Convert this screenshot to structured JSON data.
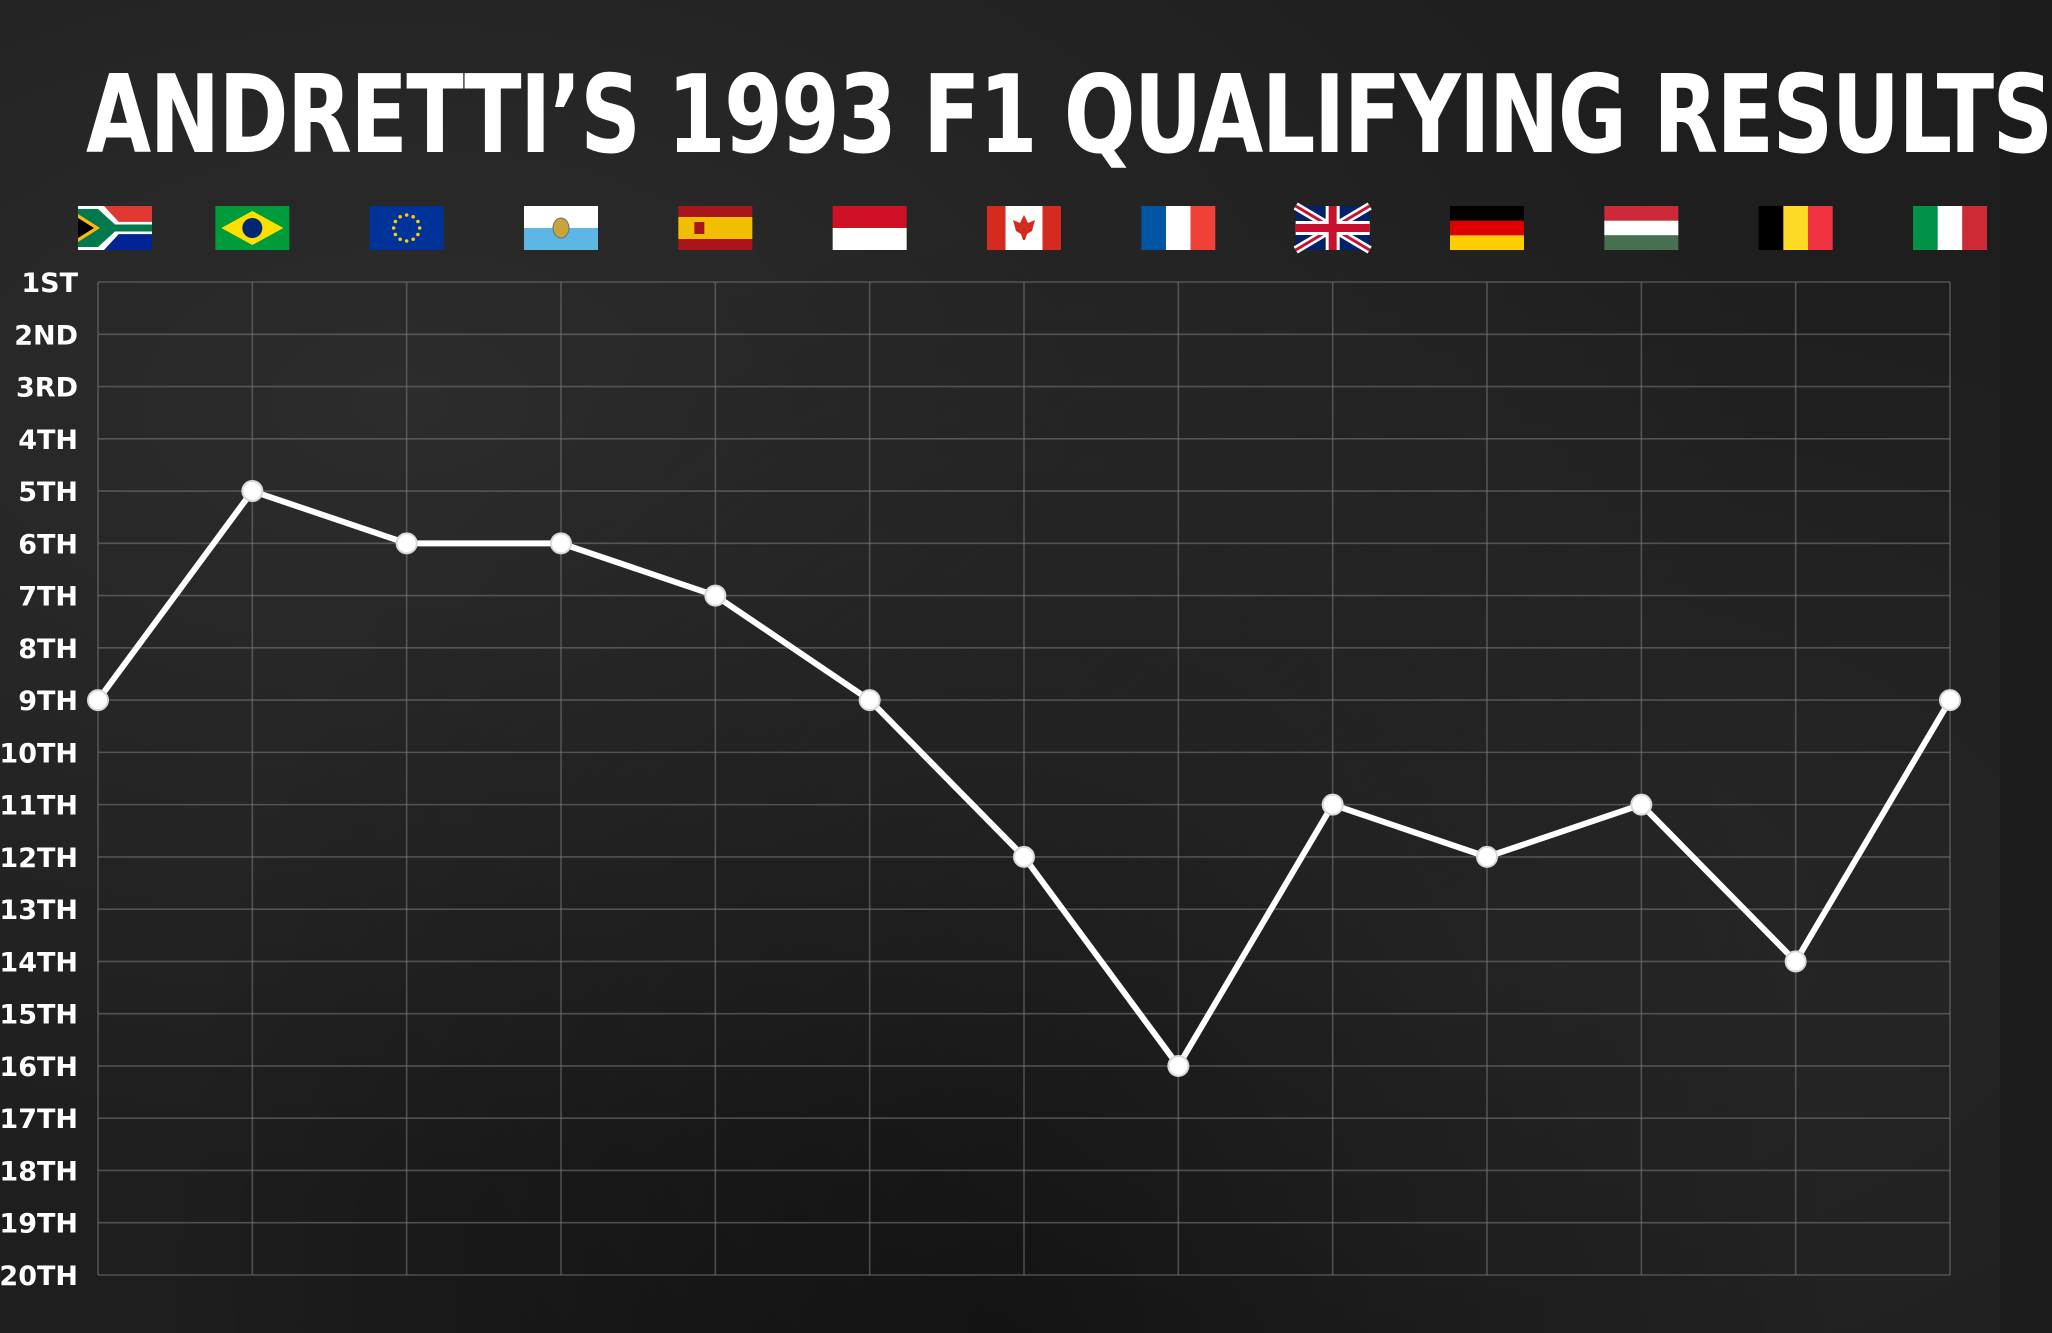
{
  "chart_data": {
    "type": "line",
    "title": "ANDRETTI’S 1993 F1 QUALIFYING RESULTS",
    "categories": [
      "South Africa",
      "Brazil",
      "Europe",
      "San Marino",
      "Spain",
      "Monaco",
      "Canada",
      "France",
      "Great Britain",
      "Germany",
      "Hungary",
      "Belgium",
      "Italy"
    ],
    "category_icons": [
      "flag-south-africa",
      "flag-brazil",
      "flag-europe",
      "flag-san-marino",
      "flag-spain",
      "flag-monaco",
      "flag-canada",
      "flag-france",
      "flag-united-kingdom",
      "flag-germany",
      "flag-hungary",
      "flag-belgium",
      "flag-italy"
    ],
    "values": [
      9,
      5,
      6,
      6,
      7,
      9,
      12,
      16,
      11,
      12,
      11,
      14,
      9
    ],
    "ylim": [
      1,
      20
    ],
    "y_inverted": true,
    "yticks": [
      "1ST",
      "2ND",
      "3RD",
      "4TH",
      "5TH",
      "6TH",
      "7TH",
      "8TH",
      "9TH",
      "10TH",
      "11TH",
      "12TH",
      "13TH",
      "14TH",
      "15TH",
      "16TH",
      "17TH",
      "18TH",
      "19TH",
      "20TH"
    ],
    "xlabel": "",
    "ylabel": "",
    "grid": true,
    "line_color": "#ffffff",
    "background_color": "#1e1e1e"
  }
}
